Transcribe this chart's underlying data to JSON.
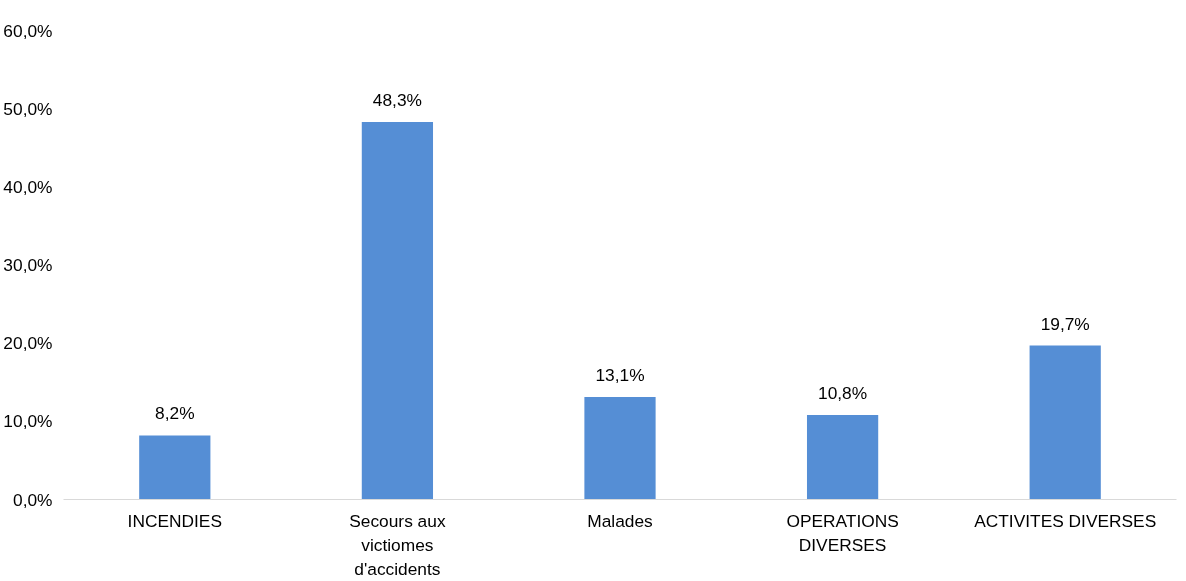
{
  "chart_data": {
    "type": "bar",
    "categories": [
      "INCENDIES",
      "Secours aux victiomes d'accidents",
      "Malades",
      "OPERATIONS DIVERSES",
      "ACTIVITES DIVERSES"
    ],
    "values": [
      8.2,
      48.3,
      13.1,
      10.8,
      19.7
    ],
    "value_labels": [
      "8,2%",
      "48,3%",
      "13,1%",
      "10,8%",
      "19,7%"
    ],
    "color": "#558ed5",
    "ylim": [
      0,
      60
    ],
    "yticks": [
      {
        "value": 0,
        "label": "0,0%"
      },
      {
        "value": 10,
        "label": "10,0%"
      },
      {
        "value": 20,
        "label": "20,0%"
      },
      {
        "value": 30,
        "label": "30,0%"
      },
      {
        "value": 40,
        "label": "40,0%"
      },
      {
        "value": 50,
        "label": "50,0%"
      },
      {
        "value": 60,
        "label": "60,0%"
      }
    ],
    "grid": false
  }
}
